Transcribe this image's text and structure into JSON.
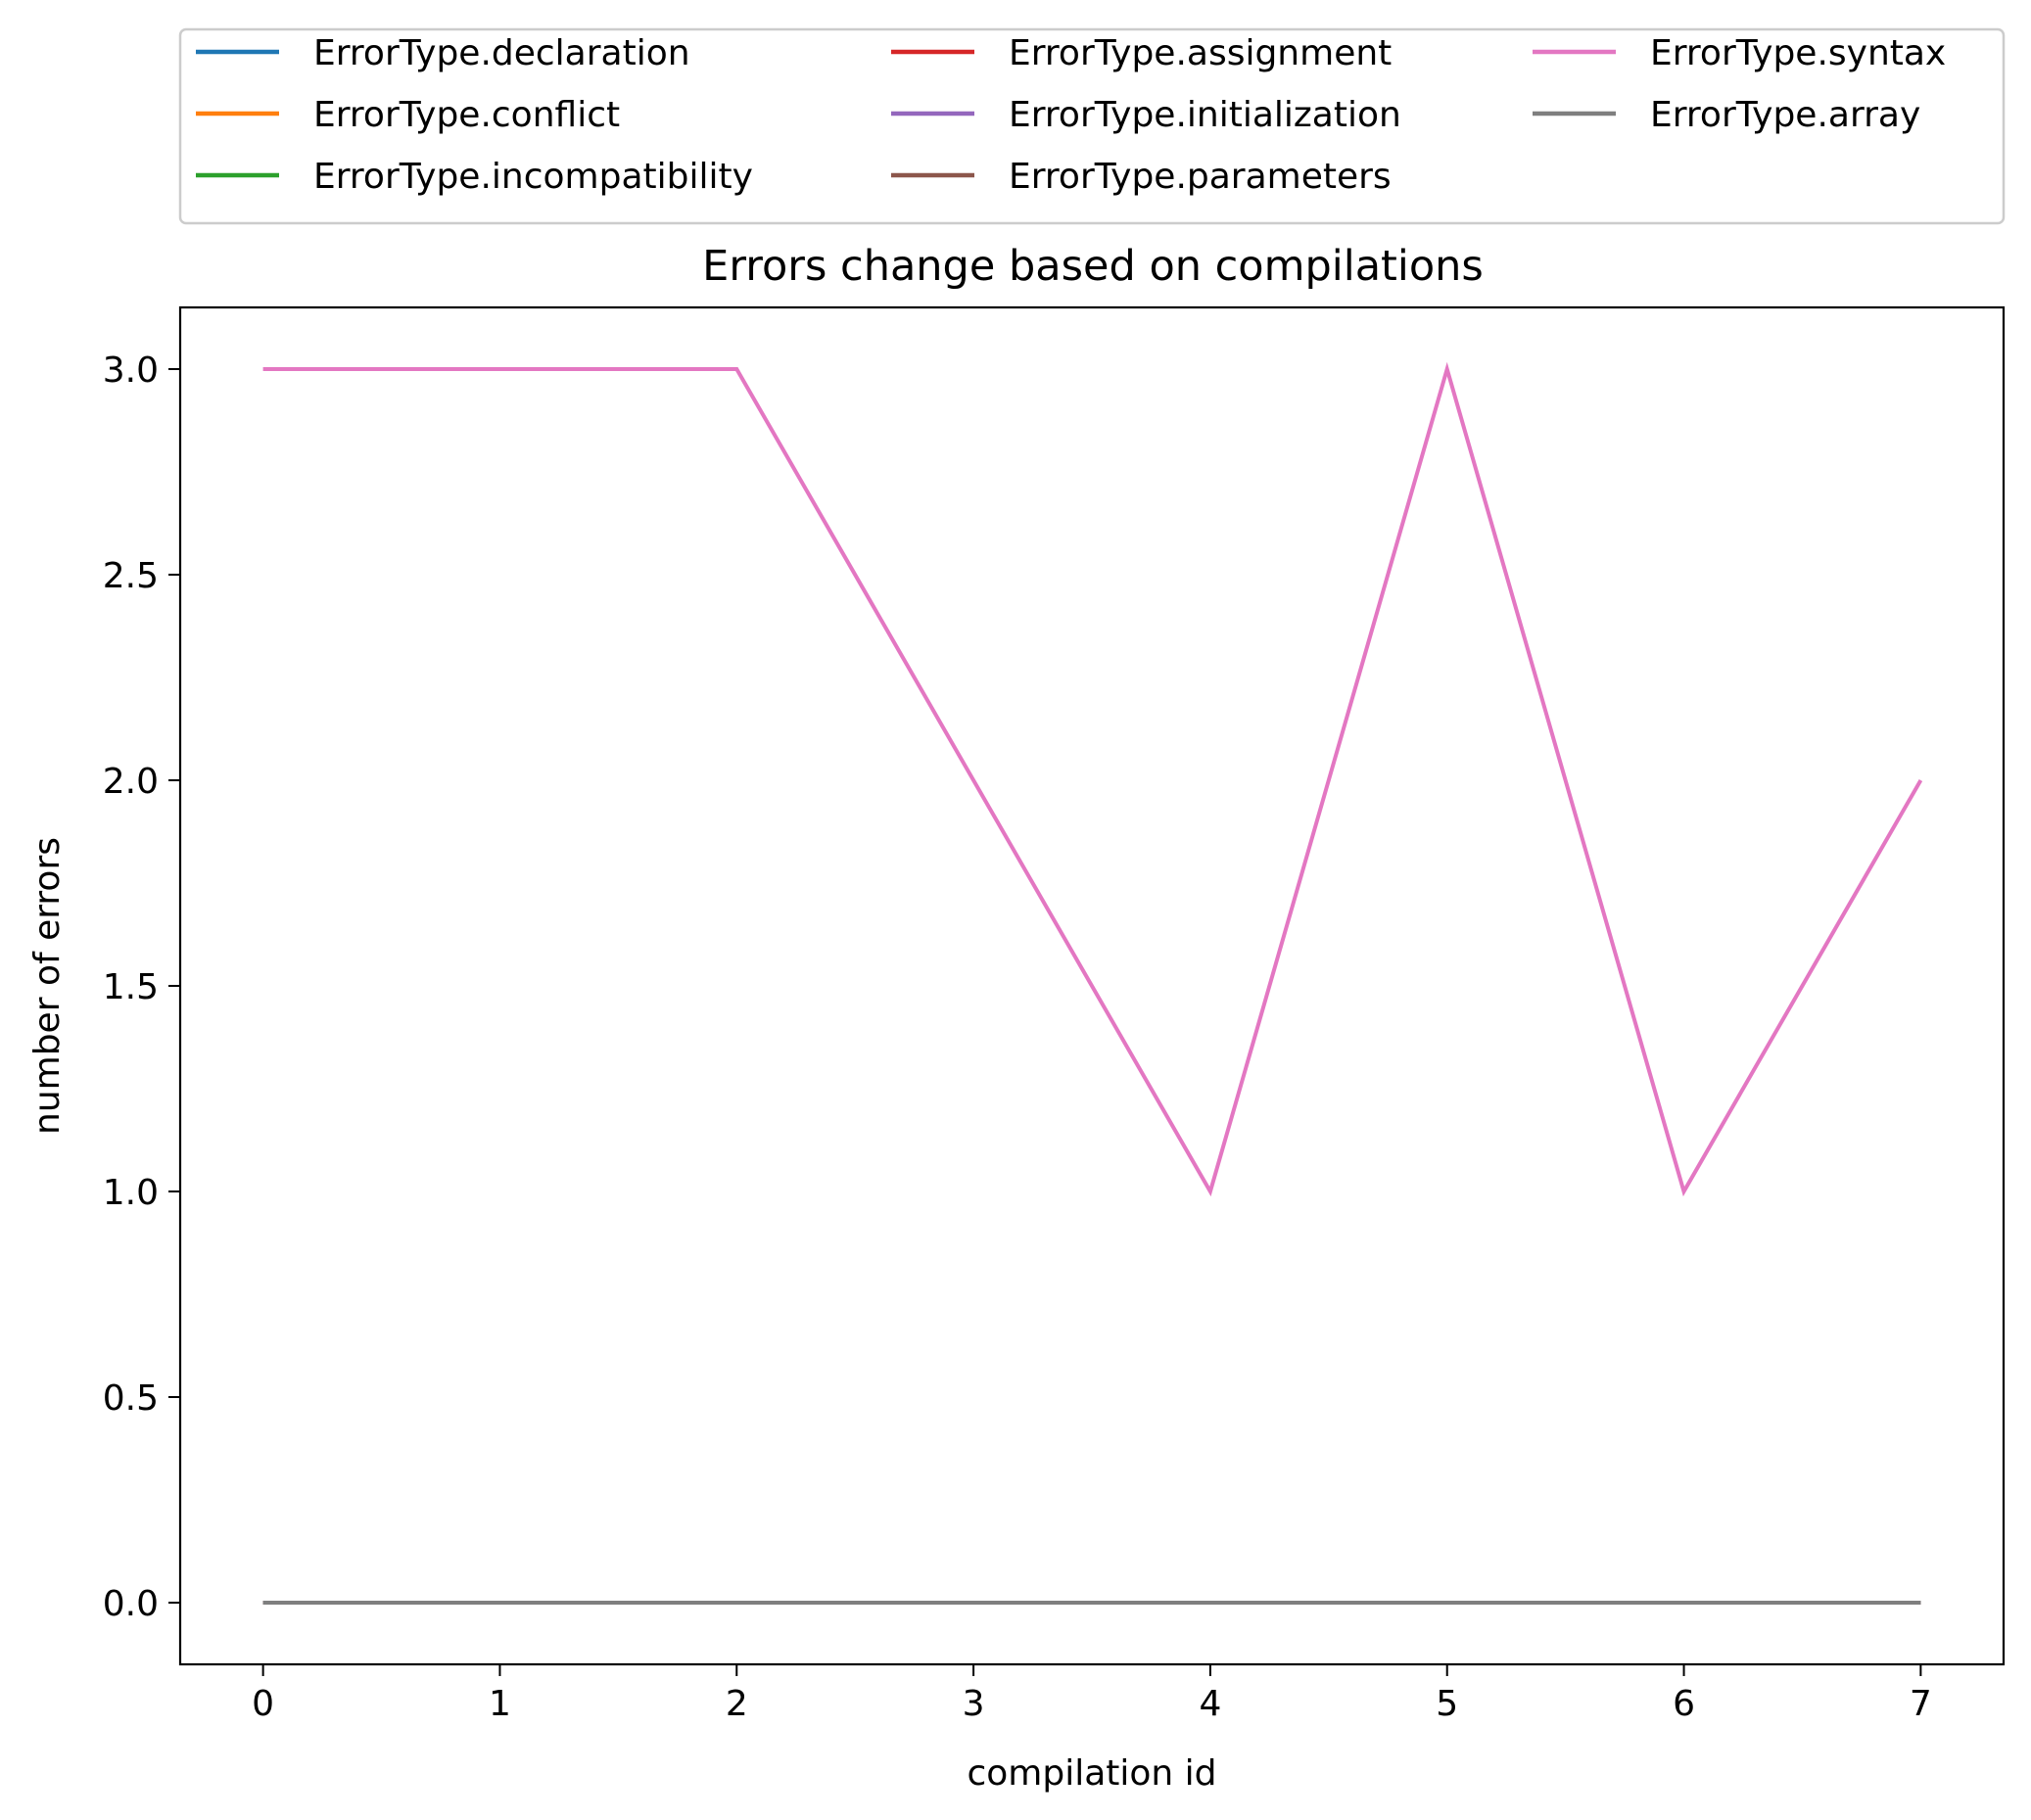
{
  "chart_data": {
    "type": "line",
    "title": "Errors change based on compilations",
    "xlabel": "compilation id",
    "ylabel": "number of errors",
    "x": [
      0,
      1,
      2,
      3,
      4,
      5,
      6,
      7
    ],
    "xlim": [
      -0.35,
      7.35
    ],
    "ylim": [
      -0.15,
      3.15
    ],
    "xticks": [
      "0",
      "1",
      "2",
      "3",
      "4",
      "5",
      "6",
      "7"
    ],
    "yticks": [
      "0.0",
      "0.5",
      "1.0",
      "1.5",
      "2.0",
      "2.5",
      "3.0"
    ],
    "grid": false,
    "legend_position": "top, above plot, 3 columns",
    "series": [
      {
        "name": "ErrorType.declaration",
        "color": "#1f77b4",
        "values": [
          0,
          0,
          0,
          0,
          0,
          0,
          0,
          0
        ]
      },
      {
        "name": "ErrorType.conflict",
        "color": "#ff7f0e",
        "values": [
          0,
          0,
          0,
          0,
          0,
          0,
          0,
          0
        ]
      },
      {
        "name": "ErrorType.incompatibility",
        "color": "#2ca02c",
        "values": [
          0,
          0,
          0,
          0,
          0,
          0,
          0,
          0
        ]
      },
      {
        "name": "ErrorType.assignment",
        "color": "#d62728",
        "values": [
          0,
          0,
          0,
          0,
          0,
          0,
          0,
          0
        ]
      },
      {
        "name": "ErrorType.initialization",
        "color": "#9467bd",
        "values": [
          0,
          0,
          0,
          0,
          0,
          0,
          0,
          0
        ]
      },
      {
        "name": "ErrorType.parameters",
        "color": "#8c564b",
        "values": [
          0,
          0,
          0,
          0,
          0,
          0,
          0,
          0
        ]
      },
      {
        "name": "ErrorType.syntax",
        "color": "#e377c2",
        "values": [
          3,
          3,
          3,
          2,
          1,
          3,
          1,
          2
        ]
      },
      {
        "name": "ErrorType.array",
        "color": "#7f7f7f",
        "values": [
          0,
          0,
          0,
          0,
          0,
          0,
          0,
          0
        ]
      }
    ]
  }
}
